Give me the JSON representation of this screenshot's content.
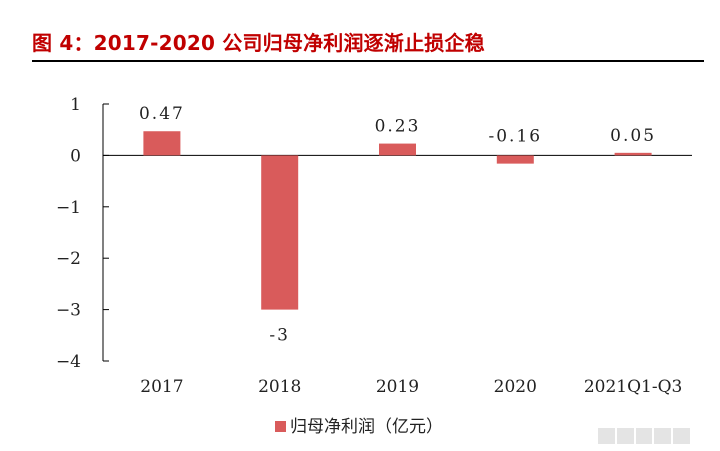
{
  "figure": {
    "title": "图 4：2017-2020 公司归母净利润逐渐止损企稳"
  },
  "chart_data": {
    "type": "bar",
    "categories": [
      "2017",
      "2018",
      "2019",
      "2020",
      "2021Q1-Q3"
    ],
    "series": [
      {
        "name": "归母净利润（亿元）",
        "values": [
          0.47,
          -3,
          0.23,
          -0.16,
          0.05
        ],
        "data_labels": [
          "0.47",
          "-3",
          "0.23",
          "-0.16",
          "0.05"
        ],
        "color": "#d95b5b"
      }
    ],
    "ylim": [
      -4,
      1
    ],
    "yticks": [
      1,
      0,
      -1,
      -2,
      -3,
      -4
    ],
    "ytick_labels": [
      "1",
      "0",
      "−1",
      "−2",
      "−3",
      "−4"
    ],
    "legend_position": "bottom-center",
    "grid": false
  }
}
